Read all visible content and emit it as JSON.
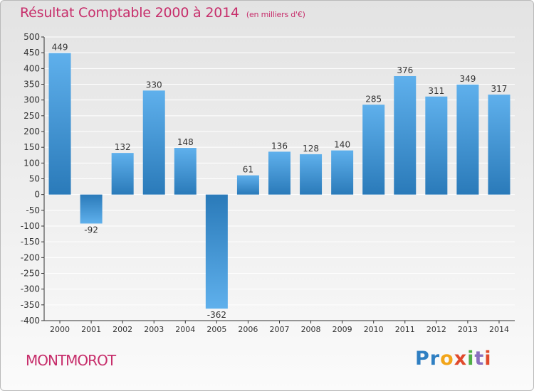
{
  "title": "Résultat Comptable 2000 à 2014",
  "unit": "(en milliers d'€)",
  "location": "MONTMOROT",
  "brand": {
    "letters": [
      "P",
      "r",
      "o",
      "x",
      "i",
      "t",
      "i"
    ],
    "colors": [
      "#2f7fc2",
      "#2f7fc2",
      "#f2a51a",
      "#e04a2c",
      "#4fae47",
      "#8a6fbf",
      "#e04a2c"
    ]
  },
  "colors": {
    "accent": "#c72e6b",
    "bar_light": "#5fb0ec",
    "bar_dark": "#2a7ab9",
    "axis": "#333333",
    "grid": "#ffffff"
  },
  "chart_data": {
    "type": "bar",
    "title": "Résultat Comptable 2000 à 2014",
    "xlabel": "",
    "ylabel": "",
    "categories": [
      "2000",
      "2001",
      "2002",
      "2003",
      "2004",
      "2005",
      "2006",
      "2007",
      "2008",
      "2009",
      "2010",
      "2011",
      "2012",
      "2013",
      "2014"
    ],
    "values": [
      449,
      -92,
      132,
      330,
      148,
      -362,
      61,
      136,
      128,
      140,
      285,
      376,
      311,
      349,
      317
    ],
    "ylim": [
      -400,
      500
    ],
    "yticks": [
      500,
      450,
      400,
      350,
      300,
      250,
      200,
      150,
      100,
      50,
      0,
      -50,
      -100,
      -150,
      -200,
      -250,
      -300,
      -350,
      -400
    ],
    "grid": true
  }
}
